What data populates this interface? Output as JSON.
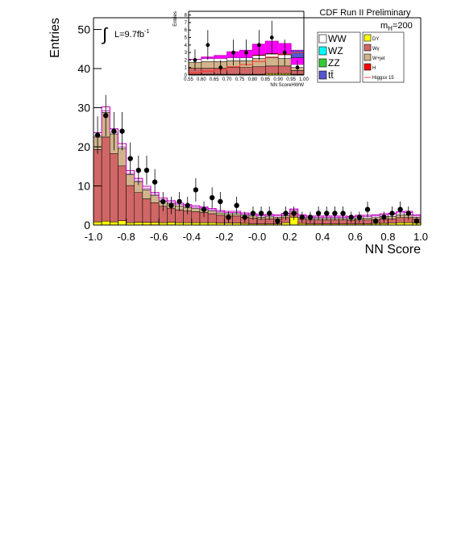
{
  "header": {
    "title": "CDF Run II Preliminary"
  },
  "annotations": {
    "mass_label": "m",
    "mass_sub": "H",
    "mass_value": "=200",
    "lumi_label": "L=9.7fb",
    "lumi_sup": "-1"
  },
  "chart_data": [
    {
      "type": "bar",
      "stacked": true,
      "title": "",
      "xlabel": "NN Score",
      "ylabel": "Entries",
      "xlim": [
        -1.0,
        1.0
      ],
      "ylim": [
        0,
        53
      ],
      "xticks": [
        "-1.0",
        "-0.8",
        "-0.6",
        "-0.4",
        "-0.2",
        "-0.0",
        "0.2",
        "0.4",
        "0.6",
        "0.8",
        "1.0"
      ],
      "yticks": [
        "0",
        "10",
        "20",
        "30",
        "40",
        "50"
      ],
      "bin_edges": [
        -1.0,
        -0.95,
        -0.9,
        -0.85,
        -0.8,
        -0.75,
        -0.7,
        -0.65,
        -0.6,
        -0.55,
        -0.5,
        -0.45,
        -0.4,
        -0.35,
        -0.3,
        -0.25,
        -0.2,
        -0.15,
        -0.1,
        -0.05,
        0.0,
        0.05,
        0.1,
        0.15,
        0.2,
        0.25,
        0.3,
        0.35,
        0.4,
        0.45,
        0.5,
        0.55,
        0.6,
        0.65,
        0.7,
        0.75,
        0.8,
        0.85,
        0.9,
        0.95,
        1.0
      ],
      "series": [
        {
          "name": "DY",
          "color": "#ffff00",
          "values": [
            0.8,
            1.0,
            0.8,
            1.1,
            0.6,
            0.7,
            0.7,
            0.7,
            0.6,
            0.7,
            0.6,
            0.6,
            0.6,
            0.6,
            0.6,
            0.5,
            0.5,
            0.5,
            0.4,
            0.3,
            0.3,
            0.3,
            0.3,
            0.6,
            2.0,
            0.4,
            0.3,
            0.3,
            0.3,
            0.3,
            0.3,
            0.3,
            0.3,
            0.3,
            0.4,
            0.4,
            0.5,
            0.6,
            0.6,
            0.5
          ]
        },
        {
          "name": "Wγ",
          "color": "#d06666",
          "values": [
            18.5,
            21.5,
            17.5,
            14.0,
            9.5,
            7.6,
            6.0,
            5.0,
            4.2,
            3.6,
            3.3,
            3.0,
            2.8,
            2.6,
            2.3,
            2.0,
            1.8,
            1.8,
            1.6,
            1.5,
            1.2,
            1.3,
            1.3,
            1.3,
            1.0,
            1.2,
            1.0,
            1.0,
            1.0,
            1.0,
            1.0,
            0.9,
            1.0,
            1.0,
            1.0,
            1.2,
            1.1,
            1.3,
            1.3,
            1.1
          ]
        },
        {
          "name": "W+jet",
          "color": "#d2b48c",
          "values": [
            3.2,
            6.3,
            5.0,
            4.5,
            2.8,
            2.7,
            2.3,
            1.8,
            1.3,
            1.2,
            1.0,
            0.9,
            0.8,
            0.8,
            0.7,
            0.6,
            0.6,
            0.6,
            0.5,
            0.5,
            0.5,
            0.5,
            0.4,
            0.5,
            0.5,
            0.4,
            0.4,
            0.4,
            0.4,
            0.4,
            0.4,
            0.4,
            0.5,
            0.5,
            0.5,
            0.6,
            0.6,
            0.7,
            0.7,
            0.4
          ]
        },
        {
          "name": "WW",
          "color": "#ffffff",
          "values": [
            0.3,
            0.4,
            0.4,
            0.4,
            0.3,
            0.3,
            0.3,
            0.3,
            0.3,
            0.3,
            0.3,
            0.3,
            0.3,
            0.3,
            0.3,
            0.3,
            0.3,
            0.3,
            0.3,
            0.3,
            0.3,
            0.3,
            0.3,
            0.3,
            0.3,
            0.3,
            0.3,
            0.3,
            0.3,
            0.3,
            0.3,
            0.3,
            0.4,
            0.4,
            0.4,
            0.4,
            0.5,
            0.5,
            0.6,
            0.3
          ]
        },
        {
          "name": "Higgsx 15",
          "color": "#ff00ff",
          "values": [
            0.8,
            1.0,
            0.9,
            0.8,
            0.7,
            0.6,
            0.6,
            0.5,
            0.5,
            0.4,
            0.4,
            0.4,
            0.4,
            0.3,
            0.3,
            0.3,
            0.3,
            0.3,
            0.3,
            0.3,
            0.3,
            0.3,
            0.3,
            0.3,
            0.3,
            0.3,
            0.3,
            0.3,
            0.3,
            0.3,
            0.3,
            0.3,
            0.3,
            0.3,
            0.3,
            0.3,
            0.3,
            0.3,
            0.3,
            0.3
          ]
        }
      ],
      "data_points": {
        "x": [
          -0.975,
          -0.925,
          -0.875,
          -0.825,
          -0.775,
          -0.725,
          -0.675,
          -0.625,
          -0.575,
          -0.525,
          -0.475,
          -0.425,
          -0.375,
          -0.325,
          -0.275,
          -0.225,
          -0.175,
          -0.125,
          -0.075,
          -0.025,
          0.025,
          0.075,
          0.125,
          0.175,
          0.225,
          0.275,
          0.325,
          0.375,
          0.425,
          0.475,
          0.525,
          0.575,
          0.625,
          0.675,
          0.725,
          0.775,
          0.825,
          0.875,
          0.925,
          0.975
        ],
        "y": [
          23,
          28,
          24,
          24,
          17,
          14,
          14,
          11,
          6,
          5,
          6,
          5,
          9,
          4,
          7,
          6,
          2,
          5,
          2,
          3,
          3,
          3,
          1,
          3,
          3,
          2,
          2,
          3,
          3,
          3,
          3,
          2,
          2,
          4,
          1,
          2,
          3,
          4,
          3,
          1
        ]
      }
    },
    {
      "type": "bar",
      "stacked": true,
      "title": "",
      "xlabel": "NN ScoreHWW",
      "ylabel": "Entries",
      "xlim": [
        0.55,
        1.0
      ],
      "ylim": [
        0,
        8.5
      ],
      "xticks": [
        "0.55",
        "0.60",
        "0.65",
        "0.70",
        "0.75",
        "0.80",
        "0.85",
        "0.90",
        "0.95",
        "1.00"
      ],
      "yticks": [
        "0",
        "1",
        "2",
        "3",
        "4",
        "5",
        "6",
        "7",
        "8"
      ],
      "bin_edges": [
        0.55,
        0.6,
        0.65,
        0.7,
        0.75,
        0.8,
        0.85,
        0.9,
        0.95,
        1.0
      ],
      "series": [
        {
          "name": "DY",
          "color": "#ffff00",
          "values": [
            0.1,
            0.1,
            0.1,
            0.1,
            0.1,
            0.1,
            0.2,
            0.2,
            0.1
          ]
        },
        {
          "name": "Wγ",
          "color": "#d06666",
          "values": [
            0.8,
            0.8,
            0.8,
            0.9,
            0.9,
            1.0,
            1.0,
            1.0,
            0.5
          ]
        },
        {
          "name": "W+jet",
          "color": "#d2b48c",
          "values": [
            0.8,
            0.9,
            0.9,
            0.9,
            0.9,
            1.1,
            1.1,
            1.0,
            0.4
          ]
        },
        {
          "name": "WW",
          "color": "#ffffff",
          "values": [
            0.4,
            0.4,
            0.4,
            0.4,
            0.4,
            0.4,
            0.5,
            0.5,
            0.4
          ]
        },
        {
          "name": "H",
          "color": "#ff0000",
          "values": [
            0.0,
            0.0,
            0.0,
            0.0,
            0.0,
            0.1,
            0.1,
            0.1,
            0.0
          ]
        },
        {
          "name": "Higgsx 15",
          "color": "#ff00ff",
          "values": [
            0.0,
            0.2,
            0.4,
            0.8,
            1.0,
            1.4,
            1.6,
            1.4,
            0.9
          ]
        },
        {
          "name": "tt",
          "color": "#5555cc",
          "values": [
            0,
            0,
            0,
            0,
            0,
            0,
            0,
            0,
            1.0
          ]
        }
      ],
      "higgs_x15_line": [
        0.3,
        0.5,
        0.7,
        1.1,
        1.4,
        1.8,
        2.4,
        2.8,
        3.0
      ],
      "data_points": {
        "x": [
          0.575,
          0.625,
          0.675,
          0.725,
          0.775,
          0.825,
          0.875,
          0.925,
          0.975
        ],
        "y": [
          2,
          4,
          1,
          3,
          3,
          4,
          5,
          3,
          1
        ]
      }
    }
  ],
  "legend": {
    "left": [
      {
        "label": "WW",
        "color": "#ffffff"
      },
      {
        "label": "WZ",
        "color": "#00ffff"
      },
      {
        "label": "ZZ",
        "color": "#33cc33"
      },
      {
        "label": "tt̄",
        "color": "#5555cc"
      }
    ],
    "right": [
      {
        "label": "DY",
        "color": "#ffff00",
        "kind": "box"
      },
      {
        "label": "Wγ",
        "color": "#d06666",
        "kind": "box"
      },
      {
        "label": "W+jet",
        "color": "#d2b48c",
        "kind": "box"
      },
      {
        "label": "H",
        "color": "#ff0000",
        "kind": "box"
      },
      {
        "label": "Higgsx 15",
        "color": "#ff4444",
        "kind": "line"
      }
    ]
  }
}
